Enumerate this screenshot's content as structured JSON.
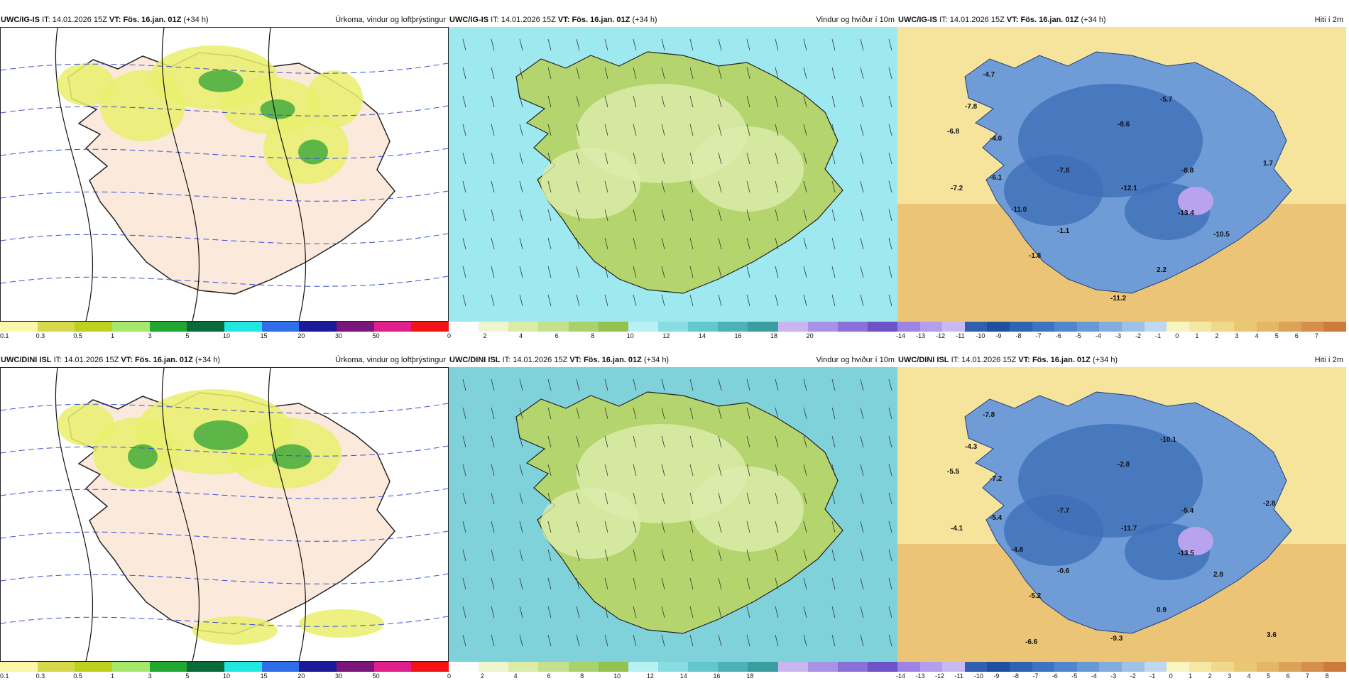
{
  "rows": [
    {
      "model": "UWC/IG-IS",
      "panels": [
        {
          "title": "Úrkoma, vindur og loftþrýstingur",
          "type": "precip"
        },
        {
          "title": "Vindur og hviður í 10m",
          "type": "wind"
        },
        {
          "title": "Hiti í 2m",
          "type": "temp",
          "temp_labels": [
            "-4.7",
            "-7.8",
            "-6.8",
            "-4.0",
            "-6.1",
            "-7.2",
            "-11.0",
            "-1.1",
            "-1.8",
            "-7.8",
            "-8.6",
            "-5.7",
            "-12.1",
            "-8.8",
            "-13.4",
            "1.7",
            "-10.5",
            "2.2",
            "-11.2"
          ]
        }
      ]
    },
    {
      "model": "UWC/DINI ISL",
      "panels": [
        {
          "title": "Úrkoma, vindur og loftþrýstingur",
          "type": "precip"
        },
        {
          "title": "Vindur og hviður í 10m",
          "type": "wind"
        },
        {
          "title": "Hiti í 2m",
          "type": "temp",
          "temp_labels": [
            "-7.8",
            "-4.3",
            "-5.5",
            "-7.2",
            "-5.4",
            "-4.1",
            "-4.8",
            "-0.6",
            "-5.2",
            "-7.7",
            "-2.8",
            "-10.1",
            "-11.7",
            "-5.4",
            "-13.5",
            "-2.8",
            "2.8",
            "0.9",
            "-9.3",
            "-6.6",
            "3.6"
          ]
        }
      ]
    }
  ],
  "issue_label": "IT:",
  "issue_time": "14.01.2026 15Z",
  "valid_label": "VT:",
  "valid_time": "Fös. 16.jan. 01Z",
  "lead_time": "(+34 h)",
  "colorbars": {
    "precip": {
      "colors": [
        "#fbf7a8",
        "#d7d84a",
        "#bcd21c",
        "#a5e86a",
        "#22a832",
        "#0a6a3c",
        "#20e8e0",
        "#2e6ee8",
        "#1a1a9a",
        "#7a157a",
        "#e01f8c",
        "#f21414"
      ],
      "labels": [
        "0.1",
        "0.3",
        "0.5",
        "1",
        "3",
        "5",
        "10",
        "15",
        "20",
        "30",
        "50"
      ]
    },
    "wind": {
      "colors": [
        "#ffffff",
        "#eef5cf",
        "#dbeca9",
        "#c6e18b",
        "#abd16c",
        "#93c24f",
        "#b7f1f4",
        "#88dde2",
        "#63c8cd",
        "#4cb2b8",
        "#3a9da0",
        "#c9b6f0",
        "#a892e6",
        "#8a70d8",
        "#6e52c8"
      ],
      "labels_top": [
        "0",
        "2",
        "4",
        "6",
        "8",
        "10",
        "12",
        "14",
        "16",
        "18",
        "20"
      ],
      "labels_bottom": [
        "0",
        "2",
        "4",
        "6",
        "8",
        "10",
        "12",
        "14",
        "16",
        "18"
      ]
    },
    "temp": {
      "colors": [
        "#9b84e4",
        "#b39ded",
        "#c9b9f2",
        "#2f5fae",
        "#1f4f9f",
        "#2d63b3",
        "#3b74c2",
        "#4f86cd",
        "#6799d6",
        "#82acde",
        "#9fc1e6",
        "#bfd8ef",
        "#f8f5c2",
        "#f4e8a2",
        "#efd98a",
        "#e9c874",
        "#e3b765",
        "#dca257",
        "#d58f4a",
        "#cd7b3c"
      ],
      "labels_top": [
        "-14",
        "-13",
        "-12",
        "-11",
        "-10",
        "-9",
        "-8",
        "-7",
        "-6",
        "-5",
        "-4",
        "-3",
        "-2",
        "-1",
        "0",
        "1",
        "2",
        "3",
        "4",
        "5",
        "6",
        "7"
      ],
      "labels_bottom": [
        "-14",
        "-13",
        "-12",
        "-11",
        "-10",
        "-9",
        "-8",
        "-7",
        "-6",
        "-5",
        "-4",
        "-3",
        "-2",
        "-1",
        "0",
        "1",
        "2",
        "3",
        "4",
        "5",
        "6",
        "7",
        "8"
      ]
    }
  }
}
